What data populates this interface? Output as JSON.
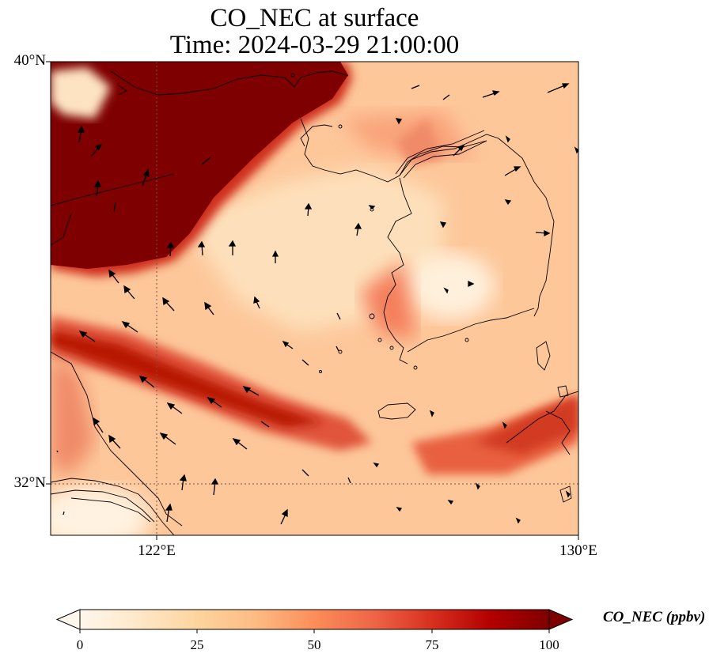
{
  "title": {
    "line1": "CO_NEC at surface",
    "line2": "Time: 2024-03-29 21:00:00"
  },
  "map": {
    "lat_labels": [
      "40°N",
      "32°N"
    ],
    "lon_labels": [
      "122°E",
      "130°E"
    ],
    "gridlines": {
      "lat": [
        32
      ],
      "lon": [
        122
      ]
    }
  },
  "colorbar": {
    "label": "CO_NEC (ppbv)",
    "ticks": [
      "0",
      "25",
      "50",
      "75",
      "100"
    ],
    "colormap": [
      "#fff7ec",
      "#fee8c8",
      "#fdd49e",
      "#fdbb84",
      "#fc8d59",
      "#ef6548",
      "#d7301f",
      "#b30000",
      "#7f0000"
    ],
    "extend": "both"
  },
  "colors": {
    "background_field": "#fdc79a",
    "high_concentration": "#7f0000",
    "coastline": "#000000"
  }
}
